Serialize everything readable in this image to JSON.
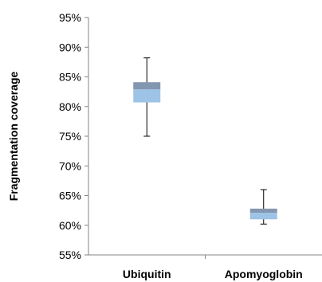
{
  "chart_data": {
    "type": "box",
    "ylabel": "Fragmentation coverage",
    "ylim": [
      55,
      95
    ],
    "yticks": [
      "55%",
      "60%",
      "65%",
      "70%",
      "75%",
      "80%",
      "85%",
      "90%",
      "95%"
    ],
    "categories": [
      "Ubiquitin",
      "Apomyoglobin"
    ],
    "boxes": [
      {
        "category": "Ubiquitin",
        "min": 75.0,
        "q1": 80.7,
        "median": 82.9,
        "q3": 84.1,
        "max": 88.2
      },
      {
        "category": "Apomyoglobin",
        "min": 60.2,
        "q1": 61.0,
        "median": 62.1,
        "q3": 62.8,
        "max": 66.0
      }
    ],
    "colors": {
      "lower_box": "#9DC3E6",
      "upper_box": "#8497B0",
      "axis": "#868686"
    }
  }
}
